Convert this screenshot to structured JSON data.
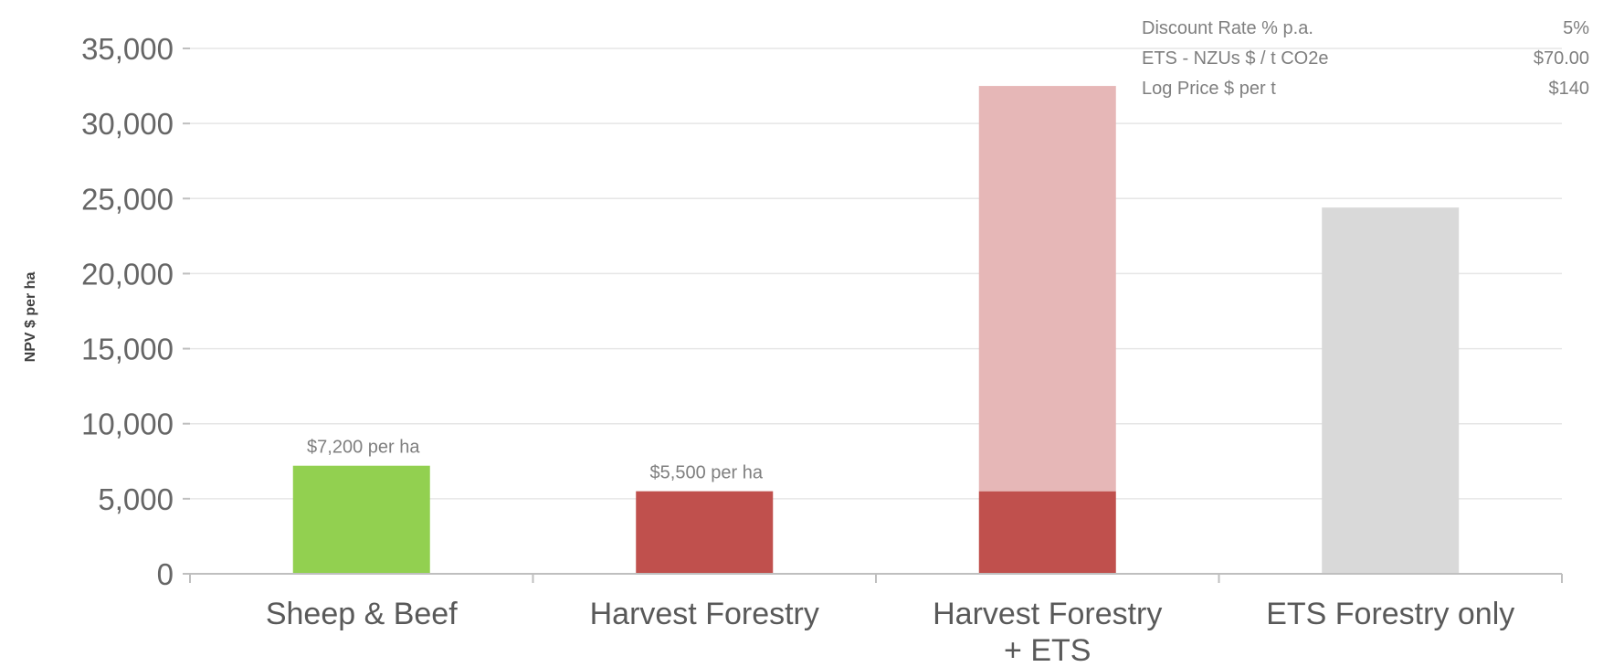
{
  "chart_data": {
    "type": "bar",
    "stacked": true,
    "title": "",
    "xlabel": "",
    "ylabel": "NPV $ per ha",
    "ylim": [
      0,
      35000
    ],
    "yticks": [
      0,
      5000,
      10000,
      15000,
      20000,
      25000,
      30000,
      35000
    ],
    "ytick_labels": [
      "0",
      "5,000",
      "10,000",
      "15,000",
      "20,000",
      "25,000",
      "30,000",
      "35,000"
    ],
    "grid": true,
    "categories": [
      [
        "Sheep & Beef"
      ],
      [
        "Harvest Forestry"
      ],
      [
        "Harvest Forestry",
        "+ ETS"
      ],
      [
        "ETS Forestry only"
      ]
    ],
    "series": [
      {
        "color": "#c0504d",
        "values": [
          0,
          5500,
          5500,
          0
        ]
      },
      {
        "color": "#e6b7b7",
        "values": [
          0,
          0,
          27000,
          0
        ]
      },
      {
        "color": "#92d050",
        "values": [
          7200,
          0,
          0,
          0
        ]
      },
      {
        "color": "#d9d9d9",
        "values": [
          0,
          0,
          0,
          24400
        ]
      }
    ],
    "annotations": [
      {
        "category_index": 0,
        "value": 7200,
        "text": "$7,200 per ha"
      },
      {
        "category_index": 1,
        "value": 5500,
        "text": "$5,500 per ha"
      }
    ],
    "info_table": [
      {
        "label": "Discount Rate % p.a.",
        "value": "5%"
      },
      {
        "label": "ETS - NZUs $ / t CO2e",
        "value": "$70.00"
      },
      {
        "label": "Log Price $ per t",
        "value": "$140"
      }
    ]
  }
}
